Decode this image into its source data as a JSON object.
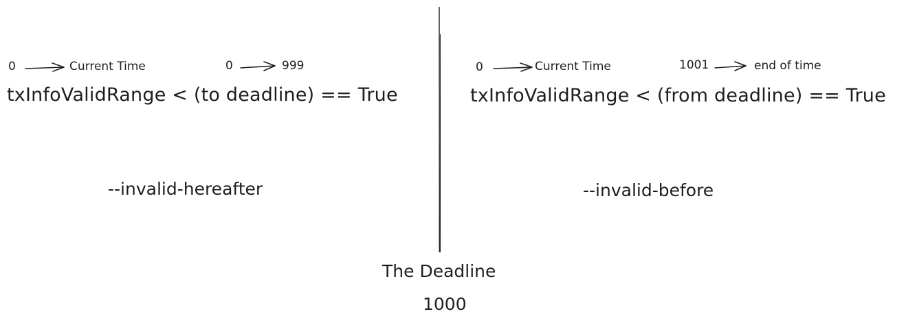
{
  "left": {
    "range_a": {
      "start": "0",
      "end": "Current Time"
    },
    "range_b": {
      "start": "0",
      "end": "999"
    },
    "expression": "txInfoValidRange < (to deadline) == True",
    "flag": "--invalid-hereafter"
  },
  "right": {
    "range_a": {
      "start": "0",
      "end": "Current Time"
    },
    "range_b": {
      "start": "1001",
      "end": "end of time"
    },
    "expression": "txInfoValidRange < (from deadline) == True",
    "flag": "--invalid-before"
  },
  "center": {
    "title": "The Deadline",
    "value": "1000"
  }
}
